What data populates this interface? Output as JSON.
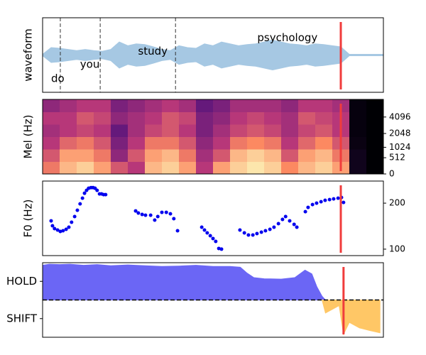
{
  "chart_data": [
    {
      "type": "waveform",
      "ylabel": "waveform",
      "xlim": [
        0,
        100
      ],
      "ylim": [
        -1,
        1
      ],
      "color": "#a6c8e3",
      "x": [
        0,
        2.5,
        5,
        7.5,
        10,
        12.5,
        15,
        17.5,
        20,
        22.5,
        25,
        27.5,
        30,
        32.5,
        35,
        37.5,
        40,
        42.5,
        45,
        47.5,
        50,
        52.5,
        55,
        57.5,
        60,
        62.5,
        65,
        67.5,
        70,
        72.5,
        75,
        77.5,
        80,
        82.5,
        85,
        87.5,
        90,
        92.5,
        95,
        97.5,
        100
      ],
      "values": [
        0.02,
        0.2,
        0.18,
        0.15,
        0.12,
        0.15,
        0.12,
        0.1,
        0.15,
        0.35,
        0.25,
        0.3,
        0.28,
        0.22,
        0.15,
        0.12,
        0.25,
        0.2,
        0.18,
        0.3,
        0.25,
        0.35,
        0.3,
        0.25,
        0.28,
        0.3,
        0.35,
        0.4,
        0.35,
        0.3,
        0.28,
        0.25,
        0.3,
        0.28,
        0.25,
        0.22,
        0.02,
        0.02,
        0.02,
        0.02,
        0.02
      ],
      "boundaries": [
        5.2,
        16.9,
        39
      ],
      "words": [
        "do",
        "you",
        "study",
        "psychology"
      ],
      "word_x": [
        2.5,
        11,
        28,
        63
      ],
      "marker": 87.5,
      "marker_color": "#f03c3c"
    },
    {
      "type": "heatmap",
      "ylabel": "Mel (Hz)",
      "xlim": [
        0,
        100
      ],
      "ylim": [
        0,
        8000
      ],
      "yscale": "mel",
      "yticks": [
        0,
        512,
        1024,
        2048,
        4096
      ],
      "z": [
        [
          0.7,
          0.85,
          0.9,
          0.8,
          0.6,
          0.5,
          0.85,
          0.9,
          0.8,
          0.5,
          0.8,
          0.9,
          0.95,
          0.9,
          0.75,
          0.85,
          0.9,
          0.8,
          0.05,
          0
        ],
        [
          0.6,
          0.8,
          0.8,
          0.7,
          0.4,
          0.6,
          0.8,
          0.85,
          0.7,
          0.45,
          0.6,
          0.85,
          0.9,
          0.85,
          0.6,
          0.8,
          0.85,
          0.7,
          0.05,
          0
        ],
        [
          0.5,
          0.65,
          0.7,
          0.6,
          0.35,
          0.5,
          0.7,
          0.7,
          0.6,
          0.4,
          0.5,
          0.7,
          0.75,
          0.7,
          0.5,
          0.65,
          0.75,
          0.6,
          0.03,
          0
        ],
        [
          0.45,
          0.5,
          0.55,
          0.5,
          0.3,
          0.45,
          0.55,
          0.6,
          0.5,
          0.35,
          0.45,
          0.55,
          0.6,
          0.55,
          0.45,
          0.55,
          0.6,
          0.5,
          0.02,
          0
        ],
        [
          0.5,
          0.5,
          0.6,
          0.55,
          0.4,
          0.45,
          0.5,
          0.6,
          0.55,
          0.35,
          0.4,
          0.5,
          0.55,
          0.5,
          0.45,
          0.6,
          0.55,
          0.5,
          0.02,
          0
        ],
        [
          0.4,
          0.45,
          0.5,
          0.5,
          0.35,
          0.4,
          0.45,
          0.5,
          0.45,
          0.3,
          0.35,
          0.45,
          0.45,
          0.45,
          0.4,
          0.5,
          0.5,
          0.45,
          0.02,
          0
        ]
      ],
      "marker": 87.5,
      "marker_color": "#f03c3c"
    },
    {
      "type": "scatter",
      "ylabel": "F0 (Hz)",
      "xlim": [
        0,
        100
      ],
      "ylim": [
        86,
        248
      ],
      "yticks": [
        100,
        200
      ],
      "color": "#0000ee",
      "x": [
        2.5,
        2.9,
        3.5,
        4.4,
        5.2,
        6.0,
        6.9,
        7.7,
        8.5,
        9.4,
        10.2,
        11.0,
        11.7,
        12.3,
        12.9,
        13.5,
        14.2,
        14.8,
        15.4,
        16.0,
        16.7,
        17.3,
        17.9,
        18.5,
        27.3,
        28.1,
        29.2,
        30.2,
        31.7,
        32.9,
        33.8,
        35.0,
        36.3,
        37.5,
        38.5,
        39.6,
        46.7,
        47.5,
        48.3,
        49.2,
        50.0,
        50.8,
        51.7,
        52.5,
        57.9,
        59.2,
        60.4,
        61.7,
        62.9,
        64.2,
        65.4,
        66.7,
        67.9,
        69.2,
        70.4,
        71.3,
        72.5,
        73.8,
        74.6,
        77.1,
        77.9,
        79.2,
        80.4,
        81.7,
        82.9,
        84.2,
        85.4,
        86.7,
        87.7,
        88.3
      ],
      "values": [
        161.5,
        150.8,
        144.6,
        141.5,
        138.5,
        140.0,
        143.1,
        147.7,
        158.5,
        170.8,
        184.6,
        198.5,
        210.8,
        221.5,
        227.7,
        232.3,
        233.8,
        233.8,
        232.3,
        227.7,
        220,
        220,
        218.5,
        218.5,
        183.1,
        178.5,
        175.4,
        173.8,
        173.8,
        163.1,
        170.8,
        180,
        180,
        176.9,
        166.2,
        140,
        147.7,
        141.5,
        135.4,
        129.2,
        123.1,
        116.9,
        101.5,
        100,
        141.5,
        135.4,
        130.8,
        130.8,
        133.8,
        136.9,
        140,
        143.1,
        147.7,
        155.4,
        164.6,
        170.8,
        161.5,
        153.8,
        147.7,
        181.5,
        190.8,
        196.9,
        200,
        203.1,
        206.2,
        207.7,
        209.2,
        210.8,
        212.3,
        201.5
      ],
      "marker": 87.5,
      "marker_color": "#f03c3c"
    },
    {
      "type": "area",
      "xlim": [
        0,
        100
      ],
      "ylim": [
        -1,
        1
      ],
      "yticks": [
        {
          "value": 0.5,
          "label": "HOLD"
        },
        {
          "value": -0.5,
          "label": "SHIFT"
        }
      ],
      "hline": 0,
      "areas": [
        {
          "color": "#6b66f5",
          "x": [
            0,
            2,
            5,
            8,
            12,
            16,
            20,
            25,
            30,
            35,
            40,
            45,
            50,
            55,
            58,
            60,
            62,
            65,
            70,
            74,
            77,
            79,
            80.5,
            82,
            83
          ],
          "values": [
            0.93,
            0.96,
            0.95,
            0.96,
            0.93,
            0.95,
            0.92,
            0.94,
            0.92,
            0.9,
            0.91,
            0.93,
            0.9,
            0.9,
            0.88,
            0.72,
            0.6,
            0.57,
            0.56,
            0.6,
            0.8,
            0.7,
            0.35,
            0.1,
            0
          ]
        },
        {
          "color": "#ffc766",
          "x": [
            82,
            83,
            85,
            87,
            88.3,
            90,
            93,
            96,
            99
          ],
          "values": [
            0,
            -0.35,
            -0.25,
            -0.15,
            -0.92,
            -0.6,
            -0.75,
            -0.82,
            -0.88
          ]
        }
      ],
      "marker": 88.3,
      "marker_color": "#f03c3c"
    }
  ]
}
